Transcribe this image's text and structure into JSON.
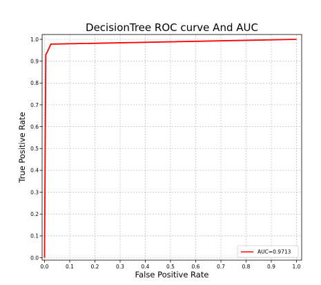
{
  "chart_data": {
    "type": "line",
    "title": "DecisionTree ROC curve And AUC",
    "xlabel": "False Positive Rate",
    "ylabel": "True Positive Rate",
    "xlim": [
      0.0,
      1.0
    ],
    "ylim": [
      0.0,
      1.0
    ],
    "xticks": [
      0.0,
      0.1,
      0.2,
      0.3,
      0.4,
      0.5,
      0.6,
      0.7,
      0.8,
      0.9,
      1.0
    ],
    "yticks": [
      0.0,
      0.1,
      0.2,
      0.3,
      0.4,
      0.5,
      0.6,
      0.7,
      0.8,
      0.9,
      1.0
    ],
    "grid": true,
    "legend_position": "bottom-right",
    "series": [
      {
        "name": "AUC=0.9713",
        "color": "#ff0000",
        "x": [
          0.0,
          0.005,
          0.01,
          0.02,
          0.025,
          1.0
        ],
        "y": [
          0.0,
          0.93,
          0.94,
          0.965,
          0.978,
          1.0
        ]
      }
    ]
  }
}
